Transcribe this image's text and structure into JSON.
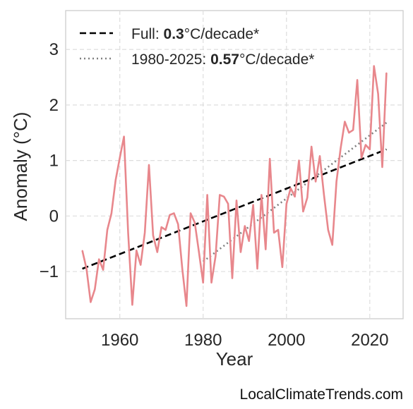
{
  "chart_data": {
    "type": "line",
    "xlabel": "Year",
    "ylabel": "Anomaly (°C)",
    "xlim": [
      1947,
      2028
    ],
    "ylim": [
      -1.85,
      3.7
    ],
    "xticks": [
      1960,
      1980,
      2000,
      2020
    ],
    "yticks": [
      -1,
      0,
      1,
      2,
      3
    ],
    "ytick_labels": [
      "−1",
      "0",
      "1",
      "2",
      "3"
    ],
    "grid": true,
    "legend_placement": "top-left",
    "series": [
      {
        "x": [
          1951,
          1952,
          1953,
          1954,
          1955,
          1956,
          1957,
          1958,
          1959,
          1960,
          1961,
          1962,
          1963,
          1964,
          1965,
          1966,
          1967,
          1968,
          1969,
          1970,
          1971,
          1972,
          1973,
          1974,
          1975,
          1976,
          1977,
          1978,
          1979,
          1980,
          1981,
          1982,
          1983,
          1984,
          1985,
          1986,
          1987,
          1988,
          1989,
          1990,
          1991,
          1992,
          1993,
          1994,
          1995,
          1996,
          1997,
          1998,
          1999,
          2000,
          2001,
          2002,
          2003,
          2004,
          2005,
          2006,
          2007,
          2008,
          2009,
          2010,
          2011,
          2012,
          2013,
          2014,
          2015,
          2016,
          2017,
          2018,
          2019,
          2020,
          2021,
          2022,
          2023,
          2024
        ],
        "y": [
          -0.62,
          -0.95,
          -1.55,
          -1.32,
          -0.78,
          -0.97,
          -0.25,
          0.05,
          0.65,
          1.05,
          1.43,
          -0.3,
          -1.6,
          -0.62,
          -0.88,
          -0.3,
          0.92,
          -0.35,
          -0.65,
          -0.2,
          -0.25,
          0.02,
          0.05,
          -0.15,
          -0.95,
          -1.62,
          0.05,
          -0.12,
          -0.65,
          -1.2,
          0.38,
          -1.2,
          -0.72,
          0.38,
          0.35,
          0.22,
          -1.12,
          0.28,
          -0.65,
          -0.18,
          -0.45,
          0.2,
          -0.95,
          0.38,
          -0.6,
          1.03,
          -0.3,
          -0.25,
          -0.92,
          0.22,
          0.5,
          0.35,
          1.0,
          0.08,
          0.33,
          1.25,
          0.62,
          1.08,
          0.38,
          -0.25,
          -0.52,
          0.62,
          1.22,
          1.7,
          1.5,
          1.55,
          2.45,
          1.05,
          1.28,
          1.2,
          2.7,
          2.2,
          0.88,
          2.58
        ],
        "color": "#e8878c"
      }
    ],
    "trends": [
      {
        "label_prefix": "Full: ",
        "value": "0.3",
        "label_suffix": "°C/decade*",
        "style": "dashed",
        "color": "#000000",
        "x": [
          1951,
          2024
        ],
        "y": [
          -0.95,
          1.2
        ]
      },
      {
        "label_prefix": "1980-2025: ",
        "value": "0.57",
        "label_suffix": "°C/decade*",
        "style": "dotted",
        "color": "#808080",
        "x": [
          1980,
          2024
        ],
        "y": [
          -0.82,
          1.68
        ]
      }
    ]
  },
  "watermark": "LocalClimateTrends.com"
}
